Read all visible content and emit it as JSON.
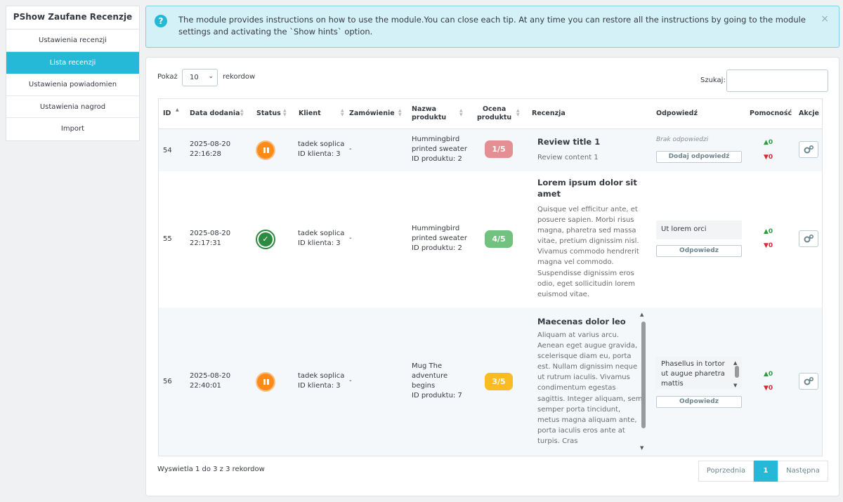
{
  "sidebar": {
    "title": "PShow Zaufane Recenzje",
    "items": [
      {
        "label": "Ustawienia recenzji"
      },
      {
        "label": "Lista recenzji"
      },
      {
        "label": "Ustawienia powiadomien"
      },
      {
        "label": "Ustawienia nagrod"
      },
      {
        "label": "Import"
      }
    ]
  },
  "alert": {
    "text": "The module provides instructions on how to use the module.You can close each tip. At any time you can restore all the instructions by going to the module settings and activating the `Show hints` option.",
    "icon": "question-circle-icon",
    "close": "×"
  },
  "controls": {
    "show_label": "Pokaż",
    "page_size": "10",
    "records_label": "rekordow",
    "search_label": "Szukaj:",
    "search_value": ""
  },
  "table": {
    "headers": {
      "id": "ID",
      "date": "Data dodania",
      "status": "Status",
      "client": "Klient",
      "order": "Zamówienie",
      "product_l1": "Nazwa",
      "product_l2": "produktu",
      "rating_l1": "Ocena",
      "rating_l2": "produktu",
      "review": "Recenzja",
      "answer": "Odpowiedź",
      "helpfulness": "Pomocność",
      "actions": "Akcje"
    },
    "rows": [
      {
        "id": "54",
        "date": "2025-08-20",
        "time": "22:16:28",
        "status": "paused",
        "client_name": "tadek soplica",
        "client_id": "ID klienta: 3",
        "order": "-",
        "product_lines": [
          "Hummingbird",
          "printed sweater",
          "ID produktu: 2"
        ],
        "rating": "1/5",
        "rating_color": "#e48f93",
        "review_title": "Review title 1",
        "review_body": "Review content 1",
        "answer_text": "Brak odpowiedzi",
        "answer_button": "Dodaj odpowiedź",
        "votes_up": "0",
        "votes_down": "0"
      },
      {
        "id": "55",
        "date": "2025-08-20",
        "time": "22:17:31",
        "status": "accepted",
        "client_name": "tadek soplica",
        "client_id": "ID klienta: 3",
        "order": "-",
        "product_lines": [
          "Hummingbird",
          "printed sweater",
          "ID produktu: 2"
        ],
        "rating": "4/5",
        "rating_color": "#70c27e",
        "review_title": "Lorem ipsum dolor sit amet",
        "review_body": "Quisque vel efficitur ante, et posuere sapien. Morbi risus magna, pharetra sed massa vitae, pretium dignissim nisl. Vivamus commodo hendrerit magna vel commodo. Suspendisse dignissim eros odio, eget sollicitudin lorem euismod vitae.",
        "answer_text": "Ut lorem orci",
        "answer_button": "Odpowiedz",
        "votes_up": "0",
        "votes_down": "0"
      },
      {
        "id": "56",
        "date": "2025-08-20",
        "time": "22:40:01",
        "status": "paused",
        "client_name": "tadek soplica",
        "client_id": "ID klienta: 3",
        "order": "-",
        "product_lines": [
          "Mug The",
          "adventure",
          "begins",
          "ID produktu: 7"
        ],
        "rating": "3/5",
        "rating_color": "#fbbb22",
        "review_title": "Maecenas dolor leo",
        "review_body": "Aliquam at varius arcu. Aenean eget augue gravida, scelerisque diam eu, porta est. Nullam dignissim neque ut rutrum iaculis. Vivamus condimentum egestas sagittis. Integer aliquam, sem semper porta tincidunt, metus magna aliquam ante, porta iaculis eros ante at turpis. Cras",
        "answer_text": "Phasellus in tortor ut augue pharetra mattis",
        "answer_button": "Odpowiedz",
        "votes_up": "0",
        "votes_down": "0"
      }
    ]
  },
  "footer": {
    "info": "Wyswietla 1 do 3 z 3 rekordow",
    "prev": "Poprzednia",
    "page": "1",
    "next": "Następna"
  }
}
